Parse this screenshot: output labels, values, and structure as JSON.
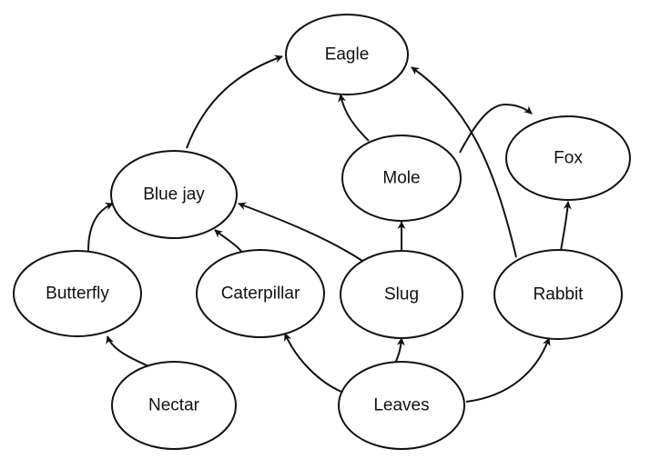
{
  "diagram": {
    "type": "food-web",
    "nodes": [
      {
        "id": "eagle",
        "label": "Eagle"
      },
      {
        "id": "fox",
        "label": "Fox"
      },
      {
        "id": "mole",
        "label": "Mole"
      },
      {
        "id": "bluejay",
        "label": "Blue jay"
      },
      {
        "id": "butterfly",
        "label": "Butterfly"
      },
      {
        "id": "caterpillar",
        "label": "Caterpillar"
      },
      {
        "id": "slug",
        "label": "Slug"
      },
      {
        "id": "rabbit",
        "label": "Rabbit"
      },
      {
        "id": "nectar",
        "label": "Nectar"
      },
      {
        "id": "leaves",
        "label": "Leaves"
      }
    ],
    "edges": [
      {
        "from": "nectar",
        "to": "butterfly"
      },
      {
        "from": "butterfly",
        "to": "bluejay"
      },
      {
        "from": "caterpillar",
        "to": "bluejay"
      },
      {
        "from": "slug",
        "to": "bluejay"
      },
      {
        "from": "bluejay",
        "to": "eagle"
      },
      {
        "from": "mole",
        "to": "eagle"
      },
      {
        "from": "rabbit",
        "to": "eagle"
      },
      {
        "from": "slug",
        "to": "mole"
      },
      {
        "from": "mole",
        "to": "fox"
      },
      {
        "from": "rabbit",
        "to": "fox"
      },
      {
        "from": "leaves",
        "to": "caterpillar"
      },
      {
        "from": "leaves",
        "to": "slug"
      },
      {
        "from": "leaves",
        "to": "rabbit"
      }
    ]
  }
}
